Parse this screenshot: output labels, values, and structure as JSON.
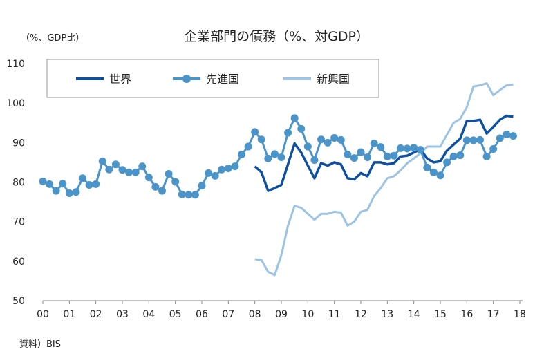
{
  "chart_data": {
    "type": "line",
    "title": "企業部門の債務（%、対GDP）",
    "ylabel": "（%、GDP比）",
    "source": "資料）BIS",
    "ylim": [
      50,
      110
    ],
    "yticks": [
      "50",
      "60",
      "70",
      "80",
      "90",
      "100",
      "110"
    ],
    "xticks": [
      "00",
      "01",
      "02",
      "03",
      "04",
      "05",
      "06",
      "07",
      "08",
      "09",
      "10",
      "11",
      "12",
      "13",
      "14",
      "15",
      "16",
      "17",
      "18"
    ],
    "x_unit": "quarterly, 2000Q1–2017Q4",
    "legend_position": "top",
    "series": [
      {
        "name": "世界",
        "color": "#0d4fa0",
        "marker": false,
        "start": 2008,
        "values": [
          84,
          82.5,
          77.8,
          78.5,
          79.3,
          84.5,
          89.8,
          87.5,
          84.2,
          81,
          84.8,
          84.2,
          85,
          84.5,
          81,
          80.7,
          82.3,
          81.5,
          85,
          85,
          84.5,
          84.8,
          86.5,
          86.7,
          87.5,
          88.3,
          86,
          85,
          85.3,
          88,
          89.5,
          91,
          95.5,
          95.5,
          95.8,
          92.3,
          94,
          95.8,
          96.8,
          96.6
        ]
      },
      {
        "name": "先進国",
        "color": "#4a94c9",
        "marker": true,
        "start": 2000,
        "values": [
          80.2,
          79.5,
          77.8,
          79.6,
          77.2,
          77.5,
          81.0,
          79.3,
          79.5,
          85.3,
          83.2,
          84.5,
          83.1,
          82.5,
          82.5,
          84.0,
          81.2,
          78.8,
          77.8,
          82.1,
          80.1,
          76.9,
          76.8,
          76.8,
          79.1,
          82.3,
          81.6,
          83.2,
          83.5,
          84.0,
          87.0,
          89.0,
          92.7,
          90.8,
          86.0,
          87.1,
          86.3,
          92.5,
          96.2,
          93.5,
          89.0,
          85.6,
          90.8,
          90.0,
          91.2,
          90.7,
          87.0,
          86.1,
          87.6,
          86.3,
          89.8,
          88.9,
          86.5,
          86.7,
          88.6,
          88.5,
          88.7,
          88.2,
          83.7,
          82.5,
          81.7,
          85.0,
          86.5,
          86.8,
          90.6,
          90.6,
          90.7,
          86.5,
          88.4,
          91.1,
          92.1,
          91.7
        ]
      },
      {
        "name": "新興国",
        "color": "#9cc3e4",
        "marker": false,
        "start": 2008,
        "values": [
          60.5,
          60.3,
          57.3,
          56.5,
          61.5,
          69,
          74,
          73.5,
          72,
          70.5,
          72,
          72,
          72.5,
          72.3,
          69,
          70,
          72.5,
          73,
          76.5,
          78.5,
          81,
          81.5,
          83,
          84.8,
          86,
          87.3,
          89,
          89,
          89,
          92,
          95,
          96,
          99,
          104.2,
          104.5,
          105,
          102,
          103.3,
          104.5,
          104.7
        ]
      }
    ]
  }
}
